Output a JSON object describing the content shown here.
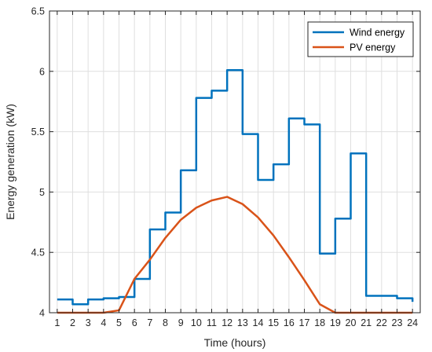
{
  "chart_data": {
    "type": "line",
    "xlabel": "Time (hours)",
    "ylabel": "Energy generation (kW)",
    "xlim": [
      0.5,
      24.5
    ],
    "ylim": [
      4,
      6.5
    ],
    "x_ticks": [
      "1",
      "2",
      "3",
      "4",
      "5",
      "6",
      "7",
      "8",
      "9",
      "10",
      "11",
      "12",
      "13",
      "14",
      "15",
      "16",
      "17",
      "18",
      "19",
      "20",
      "21",
      "22",
      "23",
      "24"
    ],
    "y_ticks": [
      "4",
      "4.5",
      "5",
      "5.5",
      "6",
      "6.5"
    ],
    "grid": true,
    "legend_position": "top-right",
    "series": [
      {
        "name": "Wind energy",
        "color": "#0072BD",
        "style": "stairs",
        "x": [
          1,
          2,
          3,
          4,
          5,
          6,
          7,
          8,
          9,
          10,
          11,
          12,
          13,
          14,
          15,
          16,
          17,
          18,
          19,
          20,
          21,
          22,
          23,
          24
        ],
        "values": [
          4.11,
          4.07,
          4.11,
          4.12,
          4.13,
          4.28,
          4.69,
          4.83,
          5.18,
          5.78,
          5.84,
          6.01,
          5.48,
          5.1,
          5.23,
          5.61,
          5.56,
          4.49,
          4.78,
          5.32,
          4.14,
          4.14,
          4.12,
          4.09
        ]
      },
      {
        "name": "PV energy",
        "color": "#D95319",
        "style": "line",
        "x": [
          1,
          2,
          3,
          4,
          5,
          6,
          7,
          8,
          9,
          10,
          11,
          12,
          13,
          14,
          15,
          16,
          17,
          18,
          19,
          20,
          21,
          22,
          23,
          24
        ],
        "values": [
          4.0,
          4.0,
          4.0,
          4.0,
          4.02,
          4.28,
          4.44,
          4.62,
          4.77,
          4.87,
          4.93,
          4.96,
          4.9,
          4.79,
          4.64,
          4.46,
          4.27,
          4.07,
          4.0,
          4.0,
          4.0,
          4.0,
          4.0,
          4.0
        ]
      }
    ]
  }
}
